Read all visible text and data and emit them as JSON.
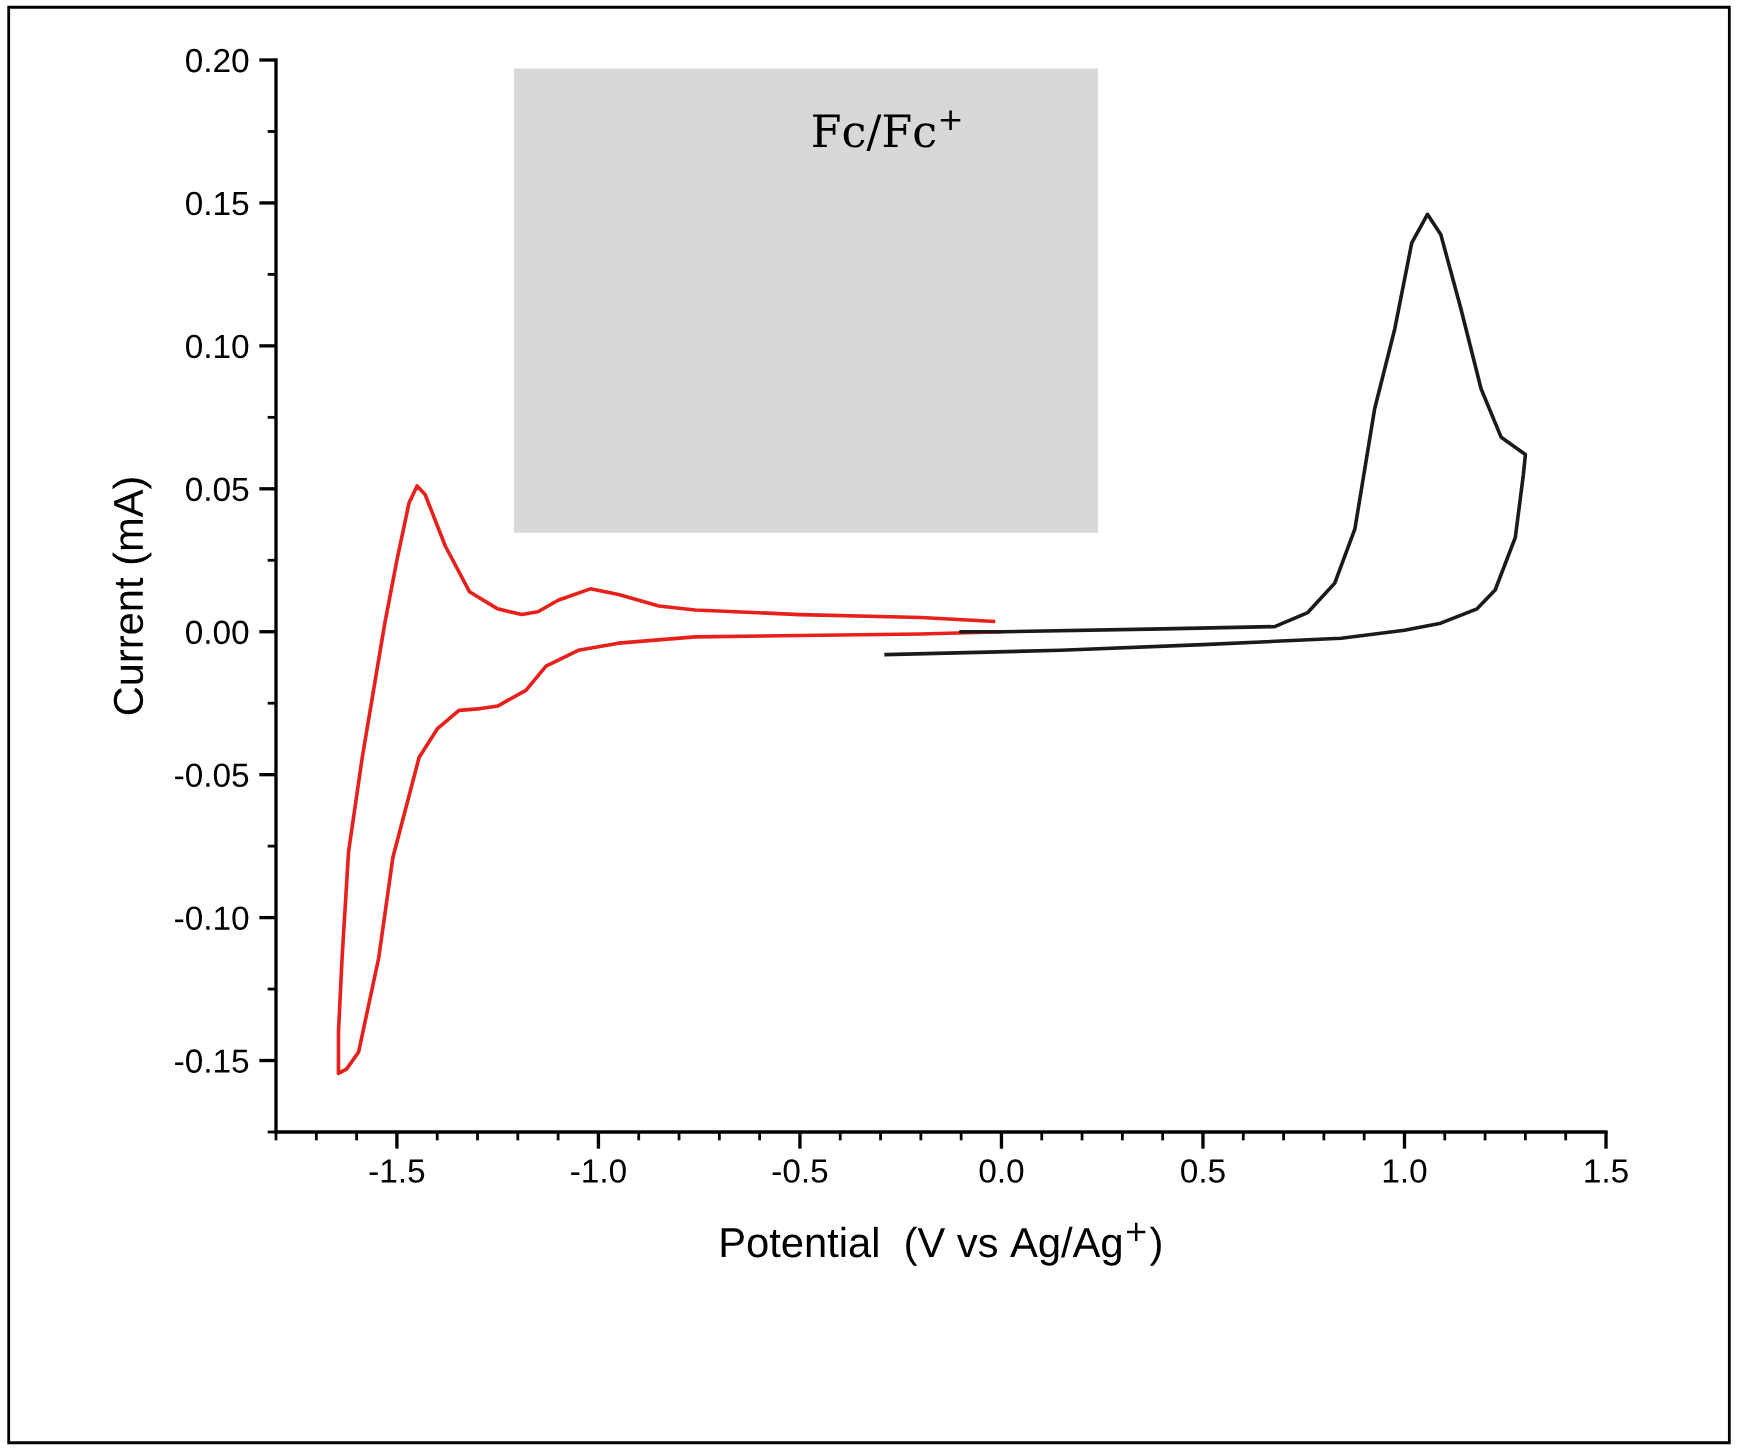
{
  "chart_data": {
    "type": "line",
    "xlabel": "Potential  (V vs Ag/Ag$^{+}$)",
    "ylabel": "Current (mA)",
    "xlim": [
      -1.8,
      1.5
    ],
    "xticks": [
      {
        "value": -1.5,
        "label": "-1.5"
      },
      {
        "value": -1.0,
        "label": "-1.0"
      },
      {
        "value": -0.5,
        "label": "-0.5"
      },
      {
        "value": 0.0,
        "label": "0.0"
      },
      {
        "value": 0.5,
        "label": "0.5"
      },
      {
        "value": 1.0,
        "label": "1.0"
      },
      {
        "value": 1.5,
        "label": "1.5"
      }
    ],
    "ylim": [
      -0.175,
      0.2
    ],
    "yticks": [
      {
        "value": -0.15,
        "label": "-0.15"
      },
      {
        "value": -0.1,
        "label": "-0.10"
      },
      {
        "value": -0.05,
        "label": "-0.05"
      },
      {
        "value": 0.0,
        "label": "0.00"
      },
      {
        "value": 0.05,
        "label": "0.05"
      },
      {
        "value": 0.1,
        "label": "0.10"
      },
      {
        "value": 0.15,
        "label": "0.15"
      },
      {
        "value": 0.2,
        "label": "0.20"
      }
    ],
    "grid": false,
    "legend": false,
    "marker": "none",
    "line_style": "solid",
    "annotations": [
      "Fc/Fc$^{+}$"
    ],
    "series": [
      {
        "color": "#e8201c",
        "x": [
          0.0,
          -0.2,
          -0.5,
          -0.76,
          -0.95,
          -1.05,
          -1.13,
          -1.18,
          -1.25,
          -1.3,
          -1.346,
          -1.4,
          -1.445,
          -1.51,
          -1.545,
          -1.595,
          -1.625,
          -1.645,
          -1.645,
          -1.636,
          -1.62,
          -1.586,
          -1.53,
          -1.5,
          -1.47,
          -1.45,
          -1.43,
          -1.38,
          -1.32,
          -1.25,
          -1.19,
          -1.15,
          -1.1,
          -1.02,
          -0.95,
          -0.85,
          -0.76,
          -0.5,
          -0.2,
          -0.02
        ],
        "values": [
          0.0,
          -0.0008,
          -0.0013,
          -0.0018,
          -0.004,
          -0.0065,
          -0.012,
          -0.0205,
          -0.026,
          -0.027,
          -0.0275,
          -0.034,
          -0.044,
          -0.079,
          -0.114,
          -0.147,
          -0.153,
          -0.1545,
          -0.14,
          -0.114,
          -0.077,
          -0.044,
          0.003,
          0.025,
          0.045,
          0.051,
          0.048,
          0.03,
          0.014,
          0.008,
          0.006,
          0.007,
          0.011,
          0.015,
          0.013,
          0.009,
          0.0076,
          0.006,
          0.005,
          0.0036
        ]
      },
      {
        "color": "#1a1a1a",
        "x": [
          -0.286,
          0.147,
          0.5,
          0.843,
          1.0,
          1.09,
          1.18,
          1.225,
          1.275,
          1.295,
          1.3,
          1.24,
          1.19,
          1.14,
          1.09,
          1.057,
          1.018,
          0.976,
          0.926,
          0.877,
          0.827,
          0.76,
          0.678,
          0.4,
          0.0,
          -0.1
        ],
        "values": [
          -0.008,
          -0.0065,
          -0.0045,
          -0.0023,
          0.0005,
          0.003,
          0.008,
          0.0146,
          0.033,
          0.055,
          0.062,
          0.068,
          0.085,
          0.113,
          0.139,
          0.146,
          0.136,
          0.106,
          0.078,
          0.036,
          0.017,
          0.0067,
          0.0018,
          0.001,
          0.0,
          0.0
        ]
      }
    ]
  }
}
